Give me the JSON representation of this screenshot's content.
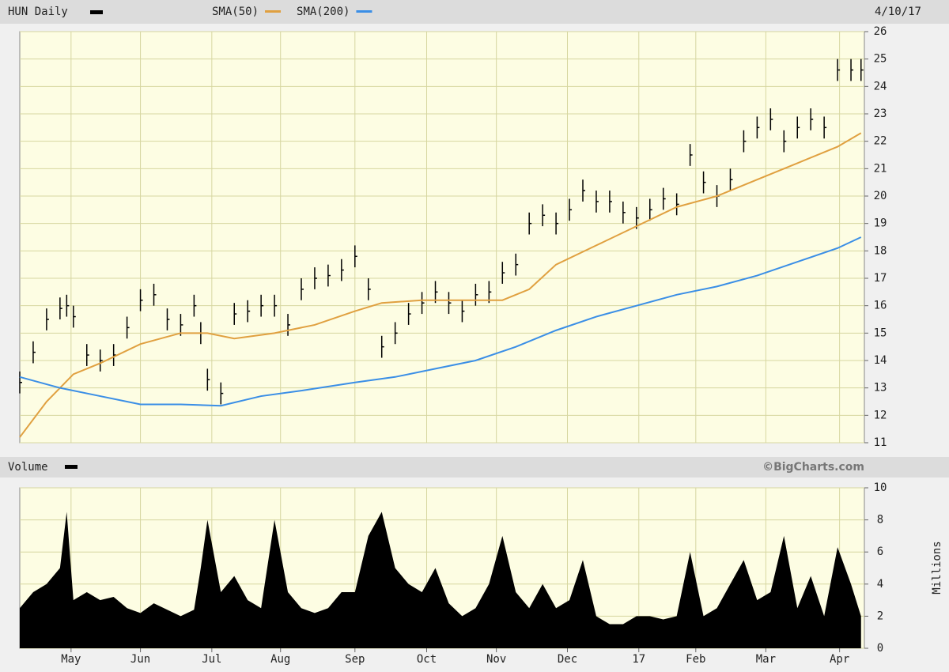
{
  "chart_data": [
    {
      "type": "ohlc",
      "title": "HUN Daily",
      "date": "4/10/17",
      "xlim": [
        0,
        252
      ],
      "ylim": [
        11,
        26
      ],
      "yticks": [
        11,
        12,
        13,
        14,
        15,
        16,
        17,
        18,
        19,
        20,
        21,
        22,
        23,
        24,
        25,
        26
      ],
      "grid": true,
      "x": [
        0,
        4,
        8,
        12,
        14,
        16,
        20,
        24,
        28,
        32,
        36,
        40,
        44,
        48,
        52,
        54,
        56,
        60,
        64,
        68,
        72,
        76,
        80,
        84,
        88,
        92,
        96,
        100,
        104,
        108,
        112,
        116,
        120,
        124,
        128,
        132,
        136,
        140,
        144,
        148,
        152,
        156,
        160,
        164,
        168,
        172,
        176,
        180,
        184,
        188,
        192,
        196,
        200,
        204,
        208,
        212,
        216,
        220,
        224,
        228,
        232,
        236,
        240,
        244,
        248,
        251
      ],
      "series": [
        {
          "name": "HUN Daily",
          "color": "#000000",
          "high": [
            13.6,
            14.7,
            15.9,
            16.3,
            16.4,
            16.0,
            14.6,
            14.4,
            14.6,
            15.6,
            16.6,
            16.8,
            15.9,
            15.7,
            16.4,
            15.4,
            13.7,
            13.2,
            16.1,
            16.2,
            16.4,
            16.4,
            15.7,
            17.0,
            17.4,
            17.5,
            17.7,
            18.2,
            17.0,
            14.9,
            15.4,
            16.1,
            16.5,
            16.9,
            16.5,
            16.2,
            16.8,
            16.9,
            17.6,
            17.9,
            19.4,
            19.7,
            19.4,
            19.9,
            20.6,
            20.2,
            20.2,
            19.8,
            19.6,
            19.9,
            20.3,
            20.1,
            21.9,
            20.9,
            20.4,
            21.0,
            22.4,
            22.9,
            23.2,
            22.4,
            22.9,
            23.2,
            22.9,
            25.0,
            25.0,
            25.0
          ],
          "low": [
            12.8,
            13.9,
            15.1,
            15.5,
            15.6,
            15.2,
            13.8,
            13.6,
            13.8,
            14.8,
            15.8,
            16.0,
            15.1,
            14.9,
            15.6,
            14.6,
            12.9,
            12.4,
            15.3,
            15.4,
            15.6,
            15.6,
            14.9,
            16.2,
            16.6,
            16.7,
            16.9,
            17.4,
            16.2,
            14.1,
            14.6,
            15.3,
            15.7,
            16.1,
            15.7,
            15.4,
            16.0,
            16.1,
            16.8,
            17.1,
            18.6,
            18.9,
            18.6,
            19.1,
            19.8,
            19.4,
            19.4,
            19.0,
            18.8,
            19.1,
            19.5,
            19.3,
            21.1,
            20.1,
            19.6,
            20.2,
            21.6,
            22.1,
            22.4,
            21.6,
            22.1,
            22.4,
            22.1,
            24.2,
            24.2,
            24.2
          ],
          "close": [
            13.2,
            14.3,
            15.5,
            15.9,
            16.0,
            15.6,
            14.2,
            14.0,
            14.2,
            15.2,
            16.2,
            16.4,
            15.5,
            15.3,
            16.0,
            15.0,
            13.3,
            12.8,
            15.7,
            15.8,
            16.0,
            16.0,
            15.3,
            16.6,
            17.0,
            17.1,
            17.3,
            17.8,
            16.6,
            14.5,
            15.0,
            15.7,
            16.1,
            16.5,
            16.1,
            15.8,
            16.4,
            16.5,
            17.2,
            17.5,
            19.0,
            19.3,
            19.0,
            19.5,
            20.2,
            19.8,
            19.8,
            19.4,
            19.2,
            19.5,
            19.9,
            19.7,
            21.5,
            20.5,
            20.0,
            20.6,
            22.0,
            22.5,
            22.8,
            22.0,
            22.5,
            22.8,
            22.5,
            24.6,
            24.6,
            24.6
          ]
        },
        {
          "name": "SMA(50)",
          "color": "#e0a040",
          "x": [
            0,
            8,
            16,
            24,
            36,
            48,
            56,
            64,
            76,
            88,
            100,
            108,
            120,
            132,
            144,
            152,
            160,
            172,
            184,
            196,
            208,
            220,
            232,
            244,
            251
          ],
          "values": [
            11.2,
            12.5,
            13.5,
            13.9,
            14.6,
            15.0,
            15.0,
            14.8,
            15.0,
            15.3,
            15.8,
            16.1,
            16.2,
            16.2,
            16.2,
            16.6,
            17.5,
            18.2,
            18.9,
            19.6,
            20.0,
            20.6,
            21.2,
            21.8,
            22.3
          ]
        },
        {
          "name": "SMA(200)",
          "color": "#3a8ee6",
          "x": [
            0,
            12,
            24,
            36,
            48,
            60,
            72,
            84,
            100,
            112,
            124,
            136,
            148,
            160,
            172,
            184,
            196,
            208,
            220,
            232,
            244,
            251
          ],
          "values": [
            13.4,
            13.0,
            12.7,
            12.4,
            12.4,
            12.35,
            12.7,
            12.9,
            13.2,
            13.4,
            13.7,
            14.0,
            14.5,
            15.1,
            15.6,
            16.0,
            16.4,
            16.7,
            17.1,
            17.6,
            18.1,
            18.5
          ]
        }
      ]
    },
    {
      "type": "area",
      "title": "Volume",
      "credit": "©BigCharts.com",
      "y_label": "Millions",
      "xlim": [
        0,
        252
      ],
      "ylim": [
        0,
        10
      ],
      "yticks": [
        0,
        2,
        4,
        6,
        8,
        10
      ],
      "grid": true,
      "color": "#000000",
      "xticks": [
        {
          "value": 15.3,
          "label": "May"
        },
        {
          "value": 36,
          "label": "Jun"
        },
        {
          "value": 57.3,
          "label": "Jul"
        },
        {
          "value": 77.8,
          "label": "Aug"
        },
        {
          "value": 100,
          "label": "Sep"
        },
        {
          "value": 121.4,
          "label": "Oct"
        },
        {
          "value": 142.2,
          "label": "Nov"
        },
        {
          "value": 163.4,
          "label": "Dec"
        },
        {
          "value": 184.7,
          "label": "17"
        },
        {
          "value": 201.7,
          "label": "Feb"
        },
        {
          "value": 222.6,
          "label": "Mar"
        },
        {
          "value": 244.6,
          "label": "Apr"
        }
      ],
      "x": [
        0,
        4,
        8,
        12,
        14,
        16,
        20,
        24,
        28,
        32,
        36,
        40,
        44,
        48,
        52,
        54,
        56,
        60,
        64,
        68,
        72,
        76,
        80,
        84,
        88,
        92,
        96,
        100,
        104,
        108,
        112,
        116,
        120,
        124,
        128,
        132,
        136,
        140,
        144,
        148,
        152,
        156,
        160,
        164,
        168,
        172,
        176,
        180,
        184,
        188,
        192,
        196,
        200,
        204,
        208,
        212,
        216,
        220,
        224,
        228,
        232,
        236,
        240,
        244,
        248,
        251
      ],
      "values": [
        2.5,
        3.5,
        4.0,
        5.0,
        8.5,
        3.0,
        3.5,
        3.0,
        3.2,
        2.5,
        2.2,
        2.8,
        2.4,
        2.0,
        2.4,
        5.0,
        8.0,
        3.5,
        4.5,
        3.0,
        2.5,
        8.0,
        3.5,
        2.5,
        2.2,
        2.5,
        3.5,
        3.5,
        7.0,
        8.5,
        5.0,
        4.0,
        3.5,
        5.0,
        2.8,
        2.0,
        2.5,
        4.0,
        7.0,
        3.5,
        2.5,
        4.0,
        2.5,
        3.0,
        5.5,
        2.0,
        1.5,
        1.5,
        2.0,
        2.0,
        1.8,
        2.0,
        6.0,
        2.0,
        2.5,
        4.0,
        5.5,
        3.0,
        3.5,
        7.0,
        2.5,
        4.5,
        2.0,
        6.3,
        4.0,
        2.0
      ]
    }
  ]
}
